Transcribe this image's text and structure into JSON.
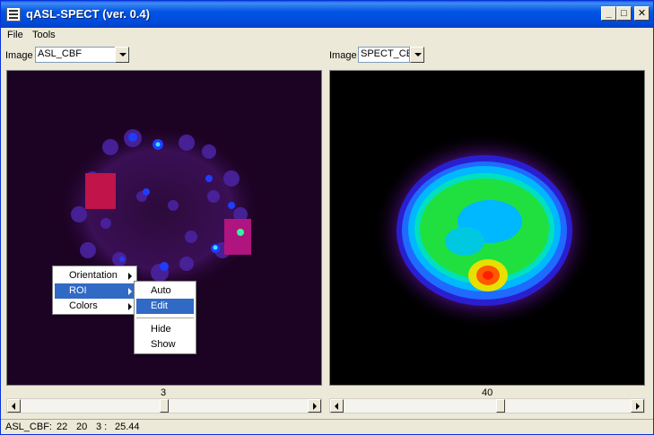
{
  "window": {
    "title": "qASL-SPECT (ver. 0.4)"
  },
  "titlebar_buttons": {
    "minimize": "_",
    "maximize": "□",
    "close": "✕"
  },
  "menu": {
    "items": [
      "File",
      "Tools"
    ]
  },
  "left_view": {
    "image_label": "Image",
    "selected_image": "ASL_CBF",
    "slice": "3"
  },
  "right_view": {
    "image_label": "Image",
    "selected_image": "SPECT_CE",
    "slice": "40"
  },
  "context_menu": {
    "items": [
      "Orientation",
      "ROI",
      "Colors"
    ],
    "highlighted": "ROI"
  },
  "roi_submenu": {
    "items": [
      "Auto",
      "Edit",
      "Hide",
      "Show"
    ],
    "highlighted": "Edit"
  },
  "status": {
    "image": "ASL_CBF:",
    "x": "22",
    "y": "20",
    "slice": "3 :",
    "value": "25.44"
  },
  "colors": {
    "titlebar": "#0055e5",
    "menu_highlight": "#316ac5",
    "left_background": "#1c0223",
    "right_background": "#000000"
  }
}
